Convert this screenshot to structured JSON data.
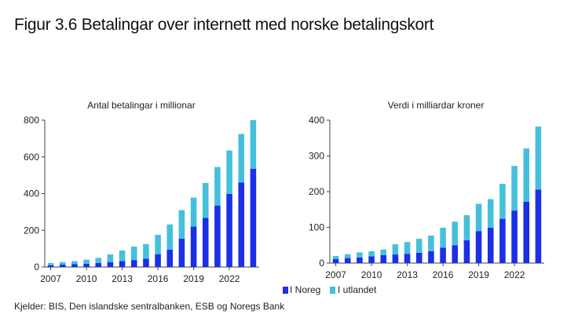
{
  "figure": {
    "title": "Figur 3.6 Betalingar over internett med norske betalingskort",
    "source": "Kjelder: BIS, Den islandske sentralbanken, ESB og Noregs Bank"
  },
  "colors": {
    "domestic": "#1a2fe6",
    "abroad": "#45c0dc"
  },
  "chart_data": [
    {
      "type": "bar",
      "stacked": true,
      "title": "Antal betalingar i millionar",
      "xlabel": "",
      "ylabel": "",
      "ylim": [
        0,
        800
      ],
      "yticks": [
        0,
        200,
        400,
        600,
        800
      ],
      "categories": [
        "2007",
        "2008",
        "2009",
        "2010",
        "2011",
        "2012",
        "2013",
        "2014",
        "2015",
        "2016",
        "2017",
        "2018",
        "2019",
        "2020",
        "2021",
        "2022",
        "2023",
        "2024"
      ],
      "xtick_labels": [
        "2007",
        "2010",
        "2013",
        "2016",
        "2019",
        "2022"
      ],
      "series": [
        {
          "name": "I Noreg",
          "values": [
            10,
            13,
            16,
            18,
            22,
            27,
            32,
            38,
            45,
            70,
            95,
            155,
            220,
            268,
            335,
            398,
            460,
            535
          ]
        },
        {
          "name": "I utlandet",
          "values": [
            12,
            14,
            16,
            22,
            28,
            42,
            58,
            73,
            80,
            105,
            137,
            155,
            158,
            190,
            210,
            237,
            265,
            265
          ]
        }
      ]
    },
    {
      "type": "bar",
      "stacked": true,
      "title": "Verdi i milliardar kroner",
      "xlabel": "",
      "ylabel": "",
      "ylim": [
        0,
        400
      ],
      "yticks": [
        0,
        100,
        200,
        300,
        400
      ],
      "categories": [
        "2007",
        "2008",
        "2009",
        "2010",
        "2011",
        "2012",
        "2013",
        "2014",
        "2015",
        "2016",
        "2017",
        "2018",
        "2019",
        "2020",
        "2021",
        "2022",
        "2023",
        "2024"
      ],
      "xtick_labels": [
        "2007",
        "2010",
        "2013",
        "2016",
        "2019",
        "2022"
      ],
      "series": [
        {
          "name": "I Noreg",
          "values": [
            11,
            14,
            16,
            19,
            22,
            24,
            26,
            29,
            33,
            43,
            50,
            64,
            89,
            99,
            124,
            147,
            172,
            206
          ]
        },
        {
          "name": "I utlandet",
          "values": [
            9,
            11,
            14,
            14,
            16,
            29,
            33,
            39,
            44,
            56,
            66,
            70,
            77,
            80,
            98,
            125,
            149,
            176
          ]
        }
      ]
    }
  ]
}
